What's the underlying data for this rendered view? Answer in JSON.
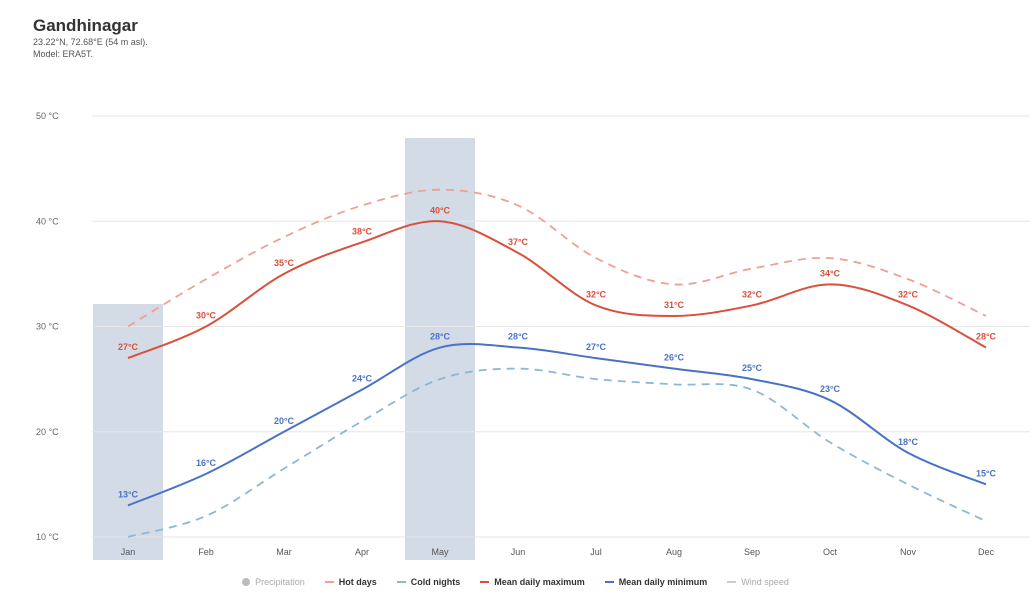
{
  "header": {
    "title": "Gandhinagar",
    "coords": "23.22°N, 72.68°E (54 m asl).",
    "model": "Model: ERA5T."
  },
  "colors": {
    "max": "#d9503c",
    "max_dashed": "#f0a094",
    "min": "#4a72c4",
    "min_dashed": "#8bb8d8",
    "highlight": "#d3dbe6",
    "grid": "#e6e6e6"
  },
  "legend": [
    {
      "label": "Precipitation",
      "style": "dot",
      "muted": true
    },
    {
      "label": "Hot days",
      "style": "dashed",
      "color": "#f0a094",
      "muted": false
    },
    {
      "label": "Cold nights",
      "style": "dashed",
      "color": "#8bb8d8",
      "muted": false
    },
    {
      "label": "Mean daily maximum",
      "style": "solid",
      "color": "#d9503c",
      "muted": false
    },
    {
      "label": "Mean daily minimum",
      "style": "solid",
      "color": "#4a72c4",
      "muted": false
    },
    {
      "label": "Wind speed",
      "style": "solid",
      "color": "#cccccc",
      "muted": true
    }
  ],
  "chart_data": {
    "type": "line",
    "categories": [
      "Jan",
      "Feb",
      "Mar",
      "Apr",
      "May",
      "Jun",
      "Jul",
      "Aug",
      "Sep",
      "Oct",
      "Nov",
      "Dec"
    ],
    "y_ticks": [
      10,
      20,
      30,
      40,
      50
    ],
    "y_tick_labels": [
      "10 °C",
      "20 °C",
      "30 °C",
      "40 °C",
      "50 °C"
    ],
    "ylim": [
      10,
      50
    ],
    "grid": true,
    "legend_position": "bottom",
    "highlighted_months": [
      "Jan",
      "May"
    ],
    "series": [
      {
        "name": "Hot days",
        "style": "dashed",
        "values": [
          30,
          34.5,
          38.5,
          41.5,
          43,
          41.5,
          36.5,
          34,
          35.5,
          36.5,
          34.5,
          31
        ]
      },
      {
        "name": "Mean daily maximum",
        "style": "solid",
        "values": [
          27,
          30,
          35,
          38,
          40,
          37,
          32,
          31,
          32,
          34,
          32,
          28
        ],
        "labels": [
          "27°C",
          "30°C",
          "35°C",
          "38°C",
          "40°C",
          "37°C",
          "32°C",
          "31°C",
          "32°C",
          "34°C",
          "32°C",
          "28°C"
        ]
      },
      {
        "name": "Mean daily minimum",
        "style": "solid",
        "values": [
          13,
          16,
          20,
          24,
          28,
          28,
          27,
          26,
          25,
          23,
          18,
          15
        ],
        "labels": [
          "13°C",
          "16°C",
          "20°C",
          "24°C",
          "28°C",
          "28°C",
          "27°C",
          "26°C",
          "25°C",
          "23°C",
          "18°C",
          "15°C"
        ]
      },
      {
        "name": "Cold nights",
        "style": "dashed",
        "values": [
          10,
          12,
          16.5,
          21,
          25,
          26,
          25,
          24.5,
          24,
          19,
          15,
          11.5
        ]
      }
    ]
  }
}
